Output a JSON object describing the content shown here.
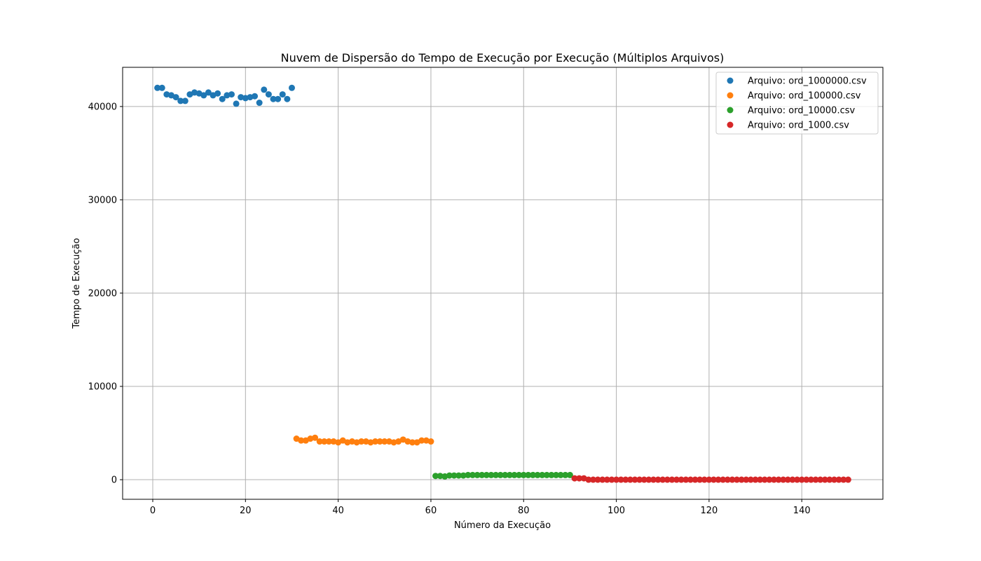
{
  "chart_data": {
    "type": "scatter",
    "title": "Nuvem de Dispersão do Tempo de Execução por Execução (Múltiplos Arquivos)",
    "xlabel": "Número da Execução",
    "ylabel": "Tempo de Execução",
    "xlim": [
      -6.5,
      157.5
    ],
    "ylim": [
      -2100,
      44200
    ],
    "xticks": [
      0,
      20,
      40,
      60,
      80,
      100,
      120,
      140
    ],
    "yticks": [
      0,
      10000,
      20000,
      30000,
      40000
    ],
    "grid": true,
    "legend_position": "top-right",
    "series": [
      {
        "name": "Arquivo: ord_1000000.csv",
        "color": "#1f77b4",
        "x": [
          1,
          2,
          3,
          4,
          5,
          6,
          7,
          8,
          9,
          10,
          11,
          12,
          13,
          14,
          15,
          16,
          17,
          18,
          19,
          20,
          21,
          22,
          23,
          24,
          25,
          26,
          27,
          28,
          29,
          30
        ],
        "y": [
          42000,
          42000,
          41300,
          41200,
          41000,
          40600,
          40600,
          41300,
          41500,
          41400,
          41200,
          41500,
          41200,
          41400,
          40800,
          41200,
          41300,
          40300,
          41000,
          40900,
          41000,
          41100,
          40400,
          41800,
          41300,
          40800,
          40800,
          41300,
          40800,
          42000
        ]
      },
      {
        "name": "Arquivo: ord_100000.csv",
        "color": "#ff7f0e",
        "x": [
          31,
          32,
          33,
          34,
          35,
          36,
          37,
          38,
          39,
          40,
          41,
          42,
          43,
          44,
          45,
          46,
          47,
          48,
          49,
          50,
          51,
          52,
          53,
          54,
          55,
          56,
          57,
          58,
          59,
          60
        ],
        "y": [
          4400,
          4200,
          4200,
          4400,
          4500,
          4100,
          4100,
          4100,
          4100,
          4000,
          4200,
          4000,
          4100,
          4000,
          4100,
          4100,
          4000,
          4100,
          4100,
          4100,
          4100,
          4000,
          4100,
          4300,
          4100,
          4000,
          4000,
          4200,
          4200,
          4100
        ]
      },
      {
        "name": "Arquivo: ord_10000.csv",
        "color": "#2ca02c",
        "x": [
          61,
          62,
          63,
          64,
          65,
          66,
          67,
          68,
          69,
          70,
          71,
          72,
          73,
          74,
          75,
          76,
          77,
          78,
          79,
          80,
          81,
          82,
          83,
          84,
          85,
          86,
          87,
          88,
          89,
          90
        ],
        "y": [
          400,
          400,
          350,
          450,
          450,
          450,
          450,
          500,
          500,
          500,
          500,
          500,
          500,
          500,
          500,
          500,
          500,
          500,
          500,
          500,
          500,
          500,
          500,
          500,
          500,
          500,
          500,
          500,
          500,
          500
        ]
      },
      {
        "name": "Arquivo: ord_1000.csv",
        "color": "#d62728",
        "x": [
          91,
          92,
          93,
          94,
          95,
          96,
          97,
          98,
          99,
          100,
          101,
          102,
          103,
          104,
          105,
          106,
          107,
          108,
          109,
          110,
          111,
          112,
          113,
          114,
          115,
          116,
          117,
          118,
          119,
          120,
          121,
          122,
          123,
          124,
          125,
          126,
          127,
          128,
          129,
          130,
          131,
          132,
          133,
          134,
          135,
          136,
          137,
          138,
          139,
          140,
          141,
          142,
          143,
          144,
          145,
          146,
          147,
          148,
          149,
          150
        ],
        "y": [
          150,
          150,
          150,
          0,
          0,
          0,
          0,
          0,
          0,
          0,
          0,
          0,
          0,
          0,
          0,
          0,
          0,
          0,
          0,
          0,
          0,
          0,
          0,
          0,
          0,
          0,
          0,
          0,
          0,
          0,
          0,
          0,
          0,
          0,
          0,
          0,
          0,
          0,
          0,
          0,
          0,
          0,
          0,
          0,
          0,
          0,
          0,
          0,
          0,
          0,
          0,
          0,
          0,
          0,
          0,
          0,
          0,
          0,
          0,
          0
        ]
      }
    ]
  }
}
